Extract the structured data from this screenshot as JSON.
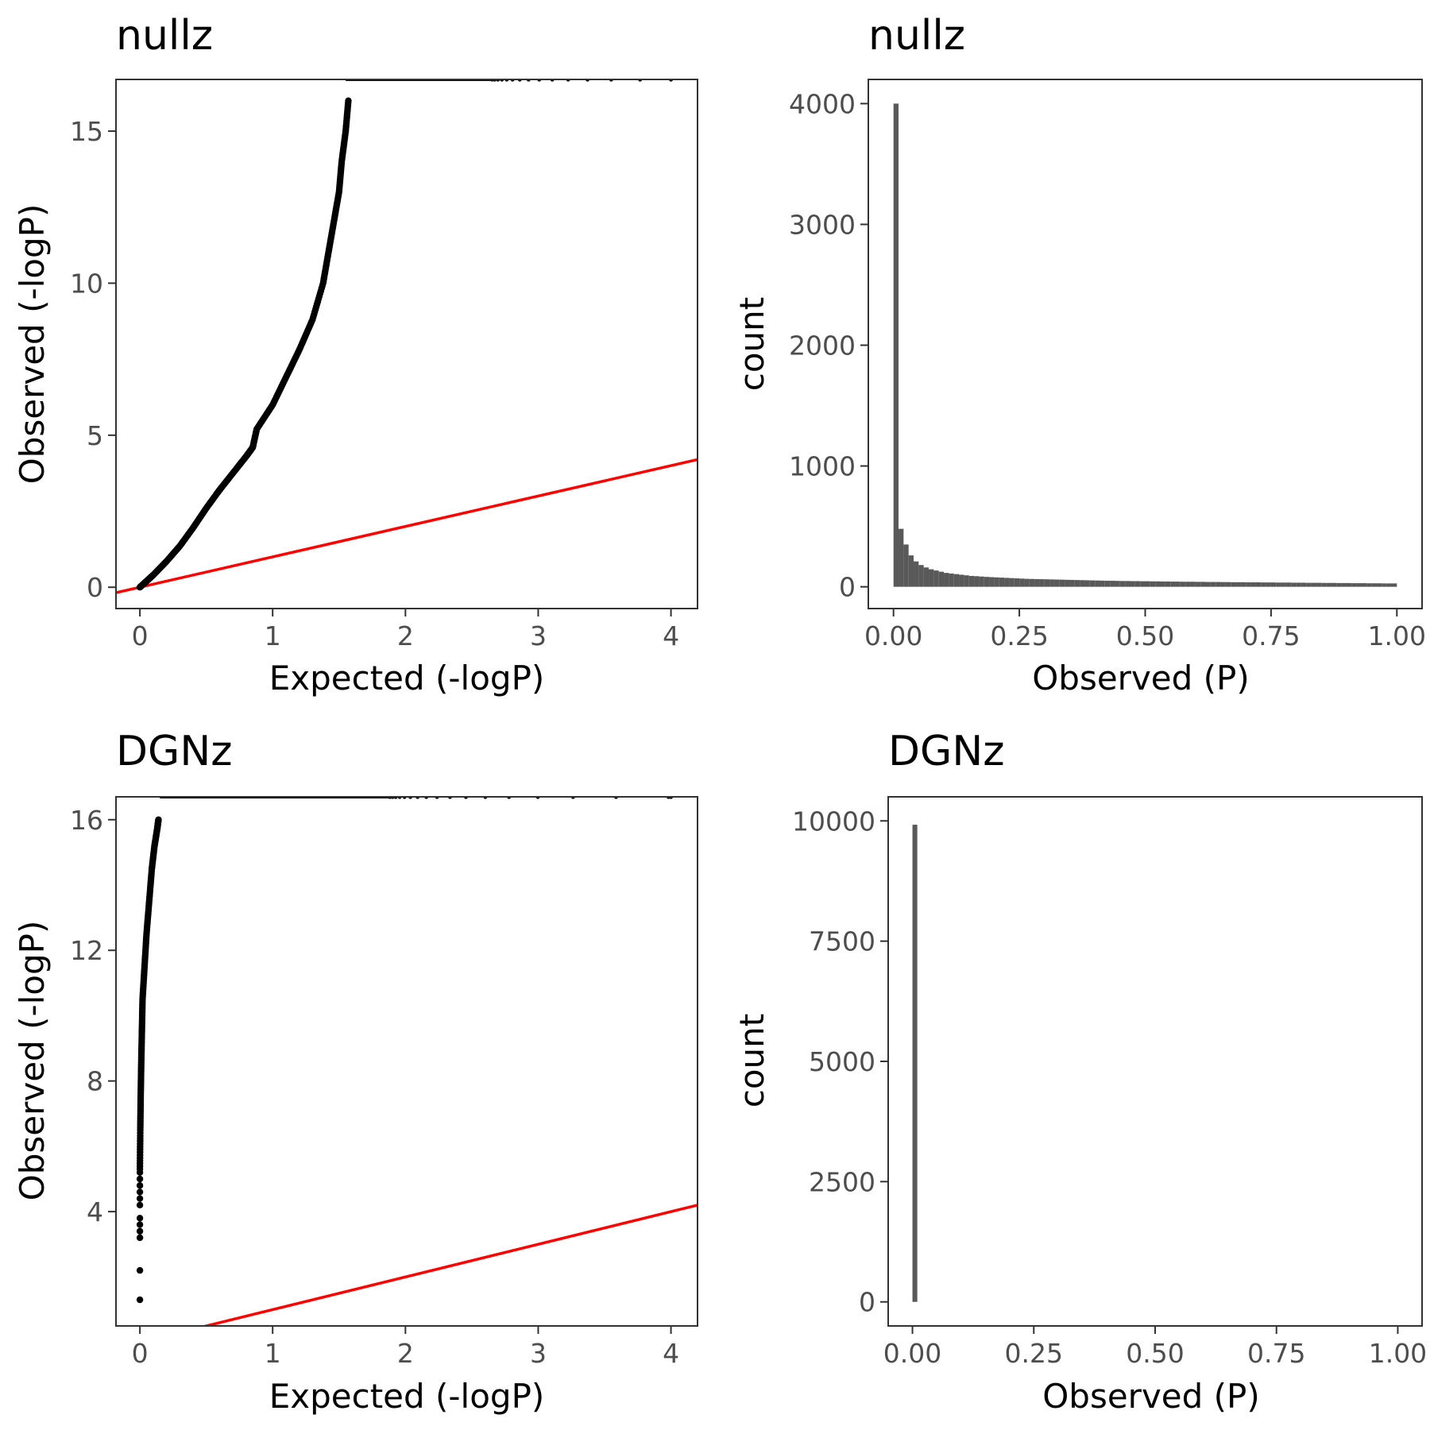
{
  "chart_data": [
    {
      "type": "scatter",
      "panel": "top-left",
      "title": "nullz",
      "xlabel": "Expected (-logP)",
      "ylabel": "Observed (-logP)",
      "xlim": [
        -0.18,
        4.2
      ],
      "ylim": [
        -0.7,
        16.7
      ],
      "xticks": [
        0,
        1,
        2,
        3,
        4
      ],
      "yticks": [
        0,
        5,
        10,
        15
      ],
      "reference_line": {
        "label": "y = x",
        "color": "#ff0000"
      },
      "points_curve": [
        [
          0,
          0
        ],
        [
          0.05,
          0.2
        ],
        [
          0.1,
          0.4
        ],
        [
          0.2,
          0.85
        ],
        [
          0.3,
          1.35
        ],
        [
          0.4,
          1.95
        ],
        [
          0.5,
          2.6
        ],
        [
          0.6,
          3.2
        ],
        [
          0.7,
          3.75
        ],
        [
          0.8,
          4.3
        ],
        [
          0.85,
          4.6
        ],
        [
          0.88,
          5.2
        ],
        [
          1.0,
          6.0
        ],
        [
          1.1,
          6.9
        ],
        [
          1.2,
          7.8
        ],
        [
          1.3,
          8.8
        ],
        [
          1.38,
          10.0
        ],
        [
          1.42,
          11.0
        ],
        [
          1.46,
          12.0
        ],
        [
          1.5,
          13.0
        ],
        [
          1.52,
          14.0
        ],
        [
          1.55,
          15.0
        ],
        [
          1.57,
          16.0
        ]
      ],
      "points_cap": {
        "y": 16.7,
        "x_from": 1.55,
        "x_to": 4.0
      }
    },
    {
      "type": "bar",
      "panel": "top-right",
      "title": "nullz",
      "xlabel": "Observed (P)",
      "ylabel": "count",
      "xlim": [
        -0.05,
        1.05
      ],
      "ylim": [
        -180,
        4200
      ],
      "xticks": [
        0,
        0.25,
        0.5,
        0.75,
        1
      ],
      "xtick_labels": [
        "0.00",
        "0.25",
        "0.50",
        "0.75",
        "1.00"
      ],
      "yticks": [
        0,
        1000,
        2000,
        3000,
        4000
      ],
      "bar_color": "#595959",
      "bin_start": 0,
      "bin_width": 0.01,
      "values": [
        4000,
        480,
        350,
        260,
        210,
        180,
        160,
        145,
        135,
        125,
        115,
        110,
        105,
        100,
        95,
        90,
        88,
        85,
        82,
        80,
        78,
        76,
        74,
        72,
        70,
        68,
        66,
        65,
        64,
        63,
        62,
        61,
        60,
        59,
        58,
        57,
        56,
        55,
        54,
        53,
        52,
        51,
        50,
        50,
        49,
        48,
        48,
        47,
        47,
        46,
        46,
        45,
        45,
        44,
        44,
        43,
        43,
        42,
        42,
        42,
        41,
        41,
        40,
        40,
        40,
        39,
        39,
        38,
        38,
        38,
        37,
        37,
        37,
        36,
        36,
        36,
        35,
        35,
        35,
        34,
        34,
        34,
        33,
        33,
        33,
        32,
        32,
        32,
        31,
        31,
        31,
        30,
        30,
        30,
        29,
        29,
        29,
        28,
        28,
        28
      ]
    },
    {
      "type": "scatter",
      "panel": "bottom-left",
      "title": "DGNz",
      "xlabel": "Expected (-logP)",
      "ylabel": "Observed (-logP)",
      "xlim": [
        -0.18,
        4.2
      ],
      "ylim": [
        0.5,
        16.7
      ],
      "xticks": [
        0,
        1,
        2,
        3,
        4
      ],
      "yticks": [
        4,
        8,
        12,
        16
      ],
      "reference_line": {
        "label": "y = x",
        "color": "#ff0000"
      },
      "points_scattered": [
        [
          0,
          1.3
        ],
        [
          0,
          2.2
        ],
        [
          0,
          3.2
        ],
        [
          0,
          3.4
        ],
        [
          0,
          3.6
        ],
        [
          0,
          3.8
        ],
        [
          0,
          4.2
        ],
        [
          0,
          4.4
        ],
        [
          0,
          4.6
        ],
        [
          0,
          4.8
        ],
        [
          0,
          5.0
        ],
        [
          0,
          5.2
        ]
      ],
      "points_curve": [
        [
          0,
          5.3
        ],
        [
          0.003,
          6.5
        ],
        [
          0.006,
          7.5
        ],
        [
          0.01,
          8.5
        ],
        [
          0.015,
          9.5
        ],
        [
          0.02,
          10.5
        ],
        [
          0.035,
          11.5
        ],
        [
          0.05,
          12.5
        ],
        [
          0.07,
          13.5
        ],
        [
          0.09,
          14.5
        ],
        [
          0.11,
          15.2
        ],
        [
          0.13,
          15.7
        ],
        [
          0.14,
          16.0
        ]
      ],
      "points_cap": {
        "y": 16.7,
        "x_from": 0.15,
        "x_to": 4.0
      }
    },
    {
      "type": "bar",
      "panel": "bottom-right",
      "title": "DGNz",
      "xlabel": "Observed (P)",
      "ylabel": "count",
      "xlim": [
        -0.05,
        1.05
      ],
      "ylim": [
        -500,
        10500
      ],
      "xticks": [
        0,
        0.25,
        0.5,
        0.75,
        1
      ],
      "xtick_labels": [
        "0.00",
        "0.25",
        "0.50",
        "0.75",
        "1.00"
      ],
      "yticks": [
        0,
        2500,
        5000,
        7500,
        10000
      ],
      "ytick_labels": [
        "0",
        "2500",
        "5000",
        "7500",
        "10000"
      ],
      "bar_color": "#595959",
      "bin_start": 0,
      "bin_width": 0.01,
      "values": [
        9920
      ]
    }
  ]
}
